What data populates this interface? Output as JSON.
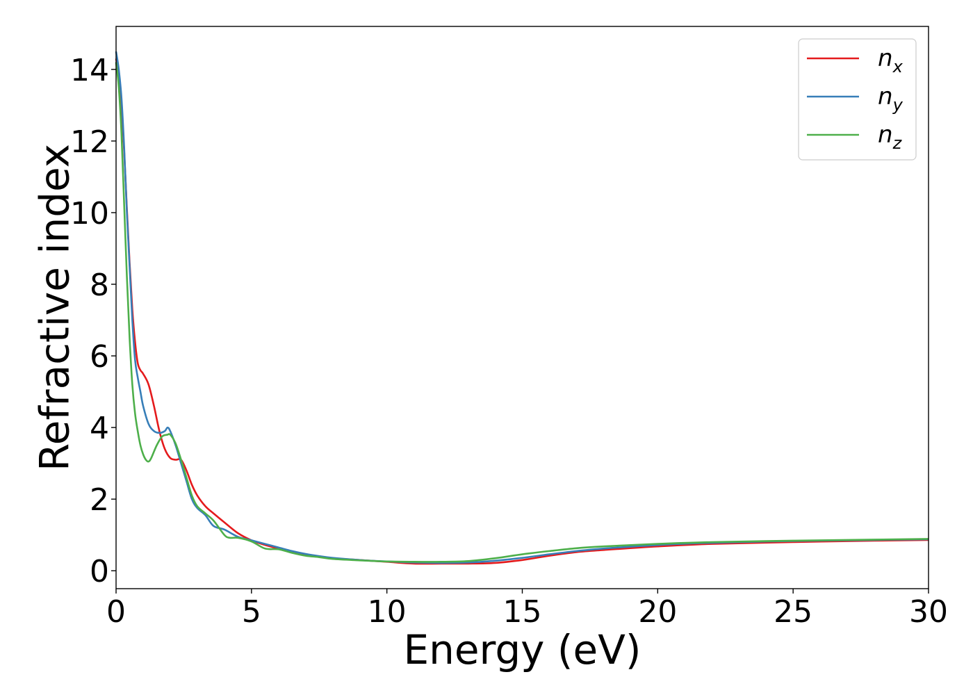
{
  "chart_data": {
    "type": "line",
    "title": "",
    "xlabel": "Energy (eV)",
    "ylabel": "Refractive index",
    "xlim": [
      0,
      30
    ],
    "ylim": [
      -0.5,
      15.2
    ],
    "xticks": [
      0,
      5,
      10,
      15,
      20,
      25,
      30
    ],
    "xtick_labels": [
      "0",
      "5",
      "10",
      "15",
      "20",
      "25",
      "30"
    ],
    "yticks": [
      0,
      2,
      4,
      6,
      8,
      10,
      12,
      14
    ],
    "ytick_labels": [
      "0",
      "2",
      "4",
      "6",
      "8",
      "10",
      "12",
      "14"
    ],
    "grid": false,
    "legend_position": "top-right",
    "series": [
      {
        "name": "n",
        "subscript": "x",
        "color": "#e41a1c",
        "x": [
          0,
          0.1,
          0.2,
          0.3,
          0.4,
          0.5,
          0.6,
          0.7,
          0.8,
          0.9,
          1.0,
          1.2,
          1.4,
          1.6,
          1.8,
          2.0,
          2.2,
          2.4,
          2.6,
          2.8,
          3.0,
          3.3,
          3.6,
          4.0,
          4.5,
          5.0,
          5.5,
          6.0,
          6.5,
          7.0,
          7.5,
          8.0,
          9.0,
          10.0,
          11.0,
          12.0,
          13.0,
          14.0,
          15.0,
          16.0,
          17.0,
          18.0,
          20.0,
          22.0,
          25.0,
          28.0,
          30.0
        ],
        "y": [
          14.3,
          13.9,
          13.0,
          11.7,
          10.1,
          8.6,
          7.3,
          6.4,
          5.8,
          5.6,
          5.5,
          5.2,
          4.6,
          3.9,
          3.4,
          3.15,
          3.1,
          3.1,
          2.8,
          2.4,
          2.1,
          1.8,
          1.6,
          1.35,
          1.05,
          0.85,
          0.72,
          0.62,
          0.52,
          0.45,
          0.4,
          0.35,
          0.3,
          0.25,
          0.2,
          0.2,
          0.2,
          0.22,
          0.3,
          0.42,
          0.52,
          0.58,
          0.68,
          0.75,
          0.8,
          0.84,
          0.86
        ]
      },
      {
        "name": "n",
        "subscript": "y",
        "color": "#377eb8",
        "x": [
          0,
          0.1,
          0.2,
          0.3,
          0.4,
          0.5,
          0.6,
          0.7,
          0.8,
          0.9,
          1.0,
          1.2,
          1.4,
          1.6,
          1.8,
          1.9,
          2.0,
          2.2,
          2.4,
          2.6,
          2.8,
          3.0,
          3.3,
          3.6,
          4.0,
          4.5,
          5.0,
          5.5,
          6.0,
          6.5,
          7.0,
          7.5,
          8.0,
          9.0,
          10.0,
          11.0,
          12.0,
          13.0,
          14.0,
          15.0,
          16.0,
          17.0,
          18.0,
          20.0,
          22.0,
          25.0,
          28.0,
          30.0
        ],
        "y": [
          14.5,
          14.0,
          13.2,
          11.8,
          10.0,
          8.5,
          7.0,
          5.9,
          5.4,
          5.0,
          4.6,
          4.1,
          3.9,
          3.85,
          3.9,
          4.0,
          3.9,
          3.5,
          3.0,
          2.5,
          2.0,
          1.75,
          1.55,
          1.25,
          1.15,
          0.95,
          0.85,
          0.75,
          0.65,
          0.55,
          0.47,
          0.41,
          0.36,
          0.3,
          0.26,
          0.23,
          0.22,
          0.23,
          0.28,
          0.36,
          0.46,
          0.55,
          0.62,
          0.72,
          0.78,
          0.83,
          0.86,
          0.88
        ]
      },
      {
        "name": "n",
        "subscript": "z",
        "color": "#4daf4a",
        "x": [
          0,
          0.1,
          0.2,
          0.3,
          0.4,
          0.5,
          0.6,
          0.7,
          0.8,
          0.9,
          1.0,
          1.1,
          1.2,
          1.3,
          1.5,
          1.7,
          1.9,
          2.0,
          2.2,
          2.4,
          2.6,
          2.8,
          3.0,
          3.3,
          3.6,
          4.0,
          4.2,
          4.5,
          5.0,
          5.5,
          6.0,
          6.5,
          7.0,
          7.5,
          8.0,
          9.0,
          10.0,
          11.0,
          12.0,
          13.0,
          14.0,
          15.0,
          16.0,
          17.0,
          18.0,
          20.0,
          22.0,
          25.0,
          28.0,
          30.0
        ],
        "y": [
          14.2,
          13.5,
          12.2,
          10.2,
          8.2,
          6.5,
          5.2,
          4.4,
          3.9,
          3.5,
          3.25,
          3.1,
          3.05,
          3.15,
          3.5,
          3.75,
          3.8,
          3.8,
          3.55,
          3.1,
          2.6,
          2.1,
          1.8,
          1.6,
          1.4,
          1.0,
          0.92,
          0.92,
          0.82,
          0.62,
          0.6,
          0.5,
          0.42,
          0.38,
          0.33,
          0.29,
          0.26,
          0.25,
          0.25,
          0.27,
          0.35,
          0.46,
          0.55,
          0.63,
          0.68,
          0.75,
          0.8,
          0.84,
          0.87,
          0.89
        ]
      }
    ]
  }
}
